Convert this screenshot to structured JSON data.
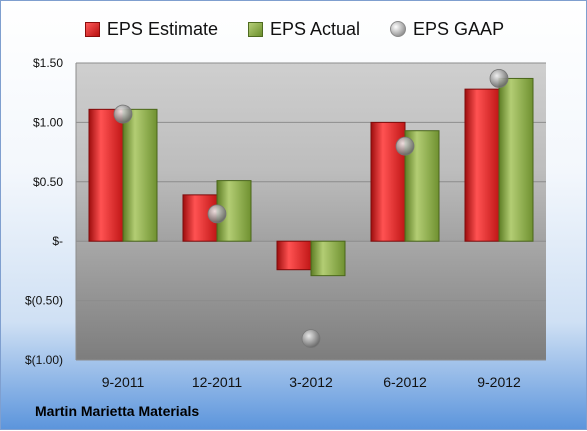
{
  "chart_data": {
    "type": "bar",
    "categories": [
      "9-2011",
      "12-2011",
      "3-2012",
      "6-2012",
      "9-2012"
    ],
    "series": [
      {
        "name": "EPS Estimate",
        "kind": "bar",
        "values": [
          1.11,
          0.39,
          -0.24,
          1.0,
          1.28
        ]
      },
      {
        "name": "EPS Actual",
        "kind": "bar",
        "values": [
          1.11,
          0.51,
          -0.29,
          0.93,
          1.37
        ]
      },
      {
        "name": "EPS GAAP",
        "kind": "scatter",
        "values": [
          1.07,
          0.23,
          -0.82,
          0.8,
          1.37
        ]
      }
    ],
    "ylim": [
      -1.0,
      1.5
    ],
    "yticks": [
      1.5,
      1.0,
      0.5,
      0,
      -0.5,
      -1.0
    ],
    "ytick_labels": [
      "$1.50",
      "$1.00",
      "$0.50",
      "$-",
      "$(0.50)",
      "$(1.00)"
    ],
    "grid": true,
    "legend_position": "top",
    "colors": {
      "estimate": "#d42424",
      "actual": "#7e9f3a",
      "gaap": "#a9a9a9"
    }
  },
  "footer": {
    "company": "Martin Marietta Materials"
  }
}
